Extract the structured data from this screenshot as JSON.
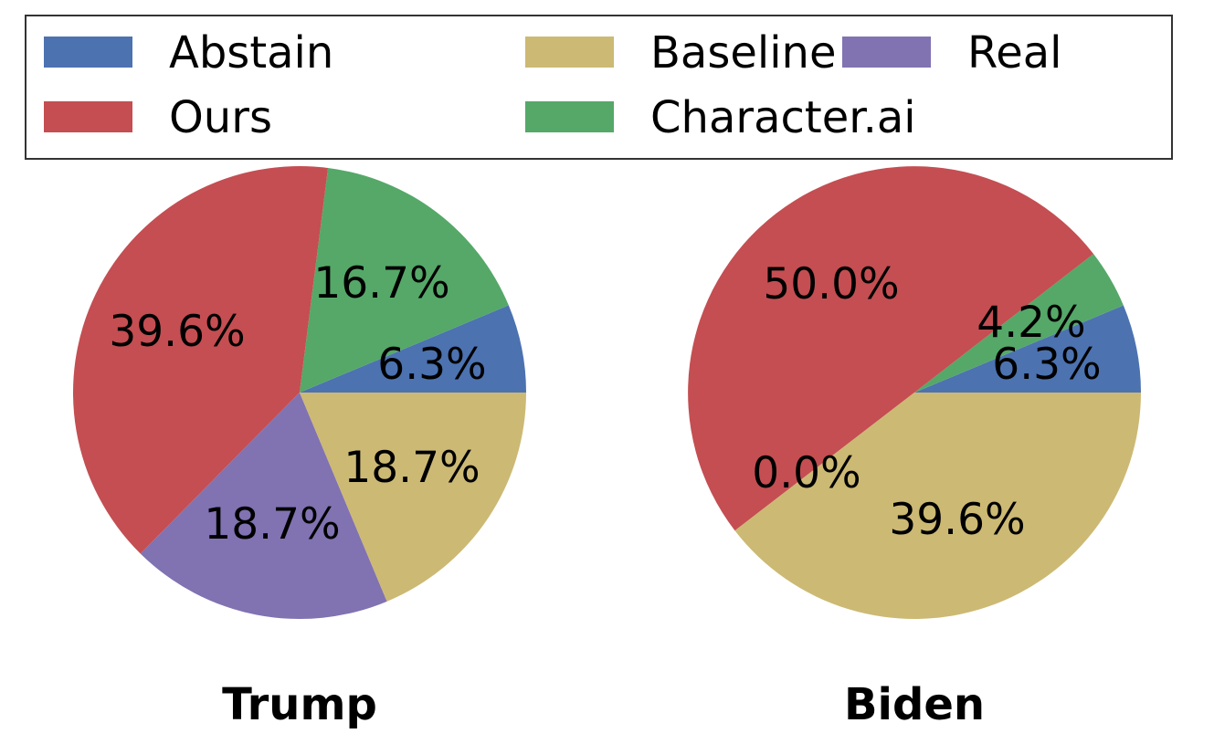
{
  "chart_data": {
    "type": "pie",
    "legend": {
      "placement": "top",
      "entries": [
        {
          "name": "Abstain",
          "color": "#4c72b0"
        },
        {
          "name": "Ours",
          "color": "#c44e52"
        },
        {
          "name": "Baseline",
          "color": "#ccb974"
        },
        {
          "name": "Character.ai",
          "color": "#55a868"
        },
        {
          "name": "Real",
          "color": "#8172b2"
        }
      ]
    },
    "pies": [
      {
        "title": "Trump",
        "slices": [
          {
            "category": "Abstain",
            "value": 6.3,
            "label": "6.3%"
          },
          {
            "category": "Character.ai",
            "value": 16.7,
            "label": "16.7%"
          },
          {
            "category": "Ours",
            "value": 39.6,
            "label": "39.6%"
          },
          {
            "category": "Real",
            "value": 18.7,
            "label": "18.7%"
          },
          {
            "category": "Baseline",
            "value": 18.7,
            "label": "18.7%"
          }
        ]
      },
      {
        "title": "Biden",
        "slices": [
          {
            "category": "Abstain",
            "value": 6.3,
            "label": "6.3%"
          },
          {
            "category": "Character.ai",
            "value": 4.2,
            "label": "4.2%"
          },
          {
            "category": "Ours",
            "value": 50.0,
            "label": "50.0%"
          },
          {
            "category": "Real",
            "value": 0.0,
            "label": "0.0%"
          },
          {
            "category": "Baseline",
            "value": 39.6,
            "label": "39.6%"
          }
        ]
      }
    ]
  }
}
